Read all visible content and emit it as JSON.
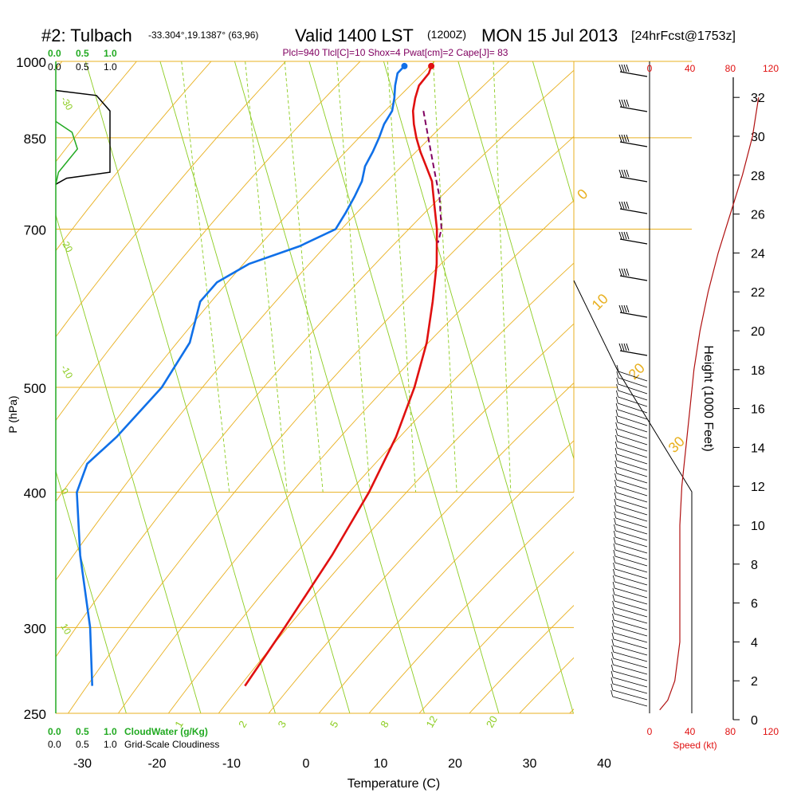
{
  "header": {
    "station": "#2: Tulbach",
    "coords": "-33.304°,19.1387° (63,96)",
    "valid": "Valid 1400 LST",
    "zulu": "(1200Z)",
    "date": "MON 15 Jul 2013",
    "forecast": "[24hrFcst@1753z]",
    "indices": "Plcl=940 Tlcl[C]=10 Shox=4 Pwat[cm]=2 Cape[J]= 83"
  },
  "colors": {
    "isobar": "#e8b020",
    "dry_adiabat": "#e8b020",
    "isotherm": "#8ccc20",
    "mixing_ratio": "#8ccc20",
    "temperature": "#e01010",
    "dewpoint": "#1070e8",
    "parcel": "#800060",
    "cloud": "#22aa22",
    "speed": "#e01010",
    "indices": "#800060"
  },
  "chart_data": {
    "type": "line",
    "xlabel": "Temperature (C)",
    "ylabel": "P (hPa)",
    "y2label": "Height (1000 Feet)",
    "x_ticks": [
      -30,
      -20,
      -10,
      0,
      10,
      20,
      30,
      40
    ],
    "p_ticks": [
      250,
      300,
      400,
      500,
      700,
      850,
      1000
    ],
    "xlim": [
      -34,
      45
    ],
    "plim": [
      1000,
      250
    ],
    "isobars": [
      250,
      300,
      400,
      500,
      700,
      850,
      1000
    ],
    "isotherm_labels": [
      {
        "t": 10,
        "p": 300,
        "text": "10"
      },
      {
        "t": 0,
        "p": 400,
        "text": "0"
      },
      {
        "t": -10,
        "p": 520,
        "text": "-10"
      },
      {
        "t": -20,
        "p": 680,
        "text": "-20"
      },
      {
        "t": -30,
        "p": 920,
        "text": "-30"
      }
    ],
    "dry_adiabat_labels": [
      {
        "x": 735,
        "y": 248,
        "text": "0"
      },
      {
        "x": 757,
        "y": 383,
        "text": "10"
      },
      {
        "x": 803,
        "y": 470,
        "text": "20"
      },
      {
        "x": 853,
        "y": 562,
        "text": "30"
      }
    ],
    "mixing_ratio_labels": [
      "1",
      "2",
      "3",
      "5",
      "8",
      "12",
      "20"
    ],
    "mixing_ratios": [
      1,
      2,
      3,
      5,
      8,
      12,
      20
    ],
    "temperature": {
      "name": "Temperature",
      "p": [
        990,
        975,
        950,
        925,
        900,
        875,
        850,
        825,
        800,
        775,
        750,
        700,
        650,
        600,
        550,
        500,
        450,
        400,
        350,
        300,
        265
      ],
      "t": [
        16.2,
        15.6,
        13.8,
        12.8,
        12.0,
        11.6,
        11.4,
        11.4,
        11.6,
        11.8,
        11.4,
        10.6,
        9.2,
        7.2,
        4.8,
        1.4,
        -3.0,
        -8.8,
        -16.2,
        -25.4,
        -33.0
      ]
    },
    "dewpoint": {
      "name": "Dewpoint",
      "p": [
        990,
        975,
        950,
        925,
        900,
        875,
        850,
        825,
        800,
        775,
        750,
        725,
        700,
        675,
        650,
        625,
        600,
        550,
        500,
        450,
        425,
        400,
        350,
        300,
        265
      ],
      "td": [
        12.6,
        11.4,
        10.6,
        10.0,
        9.2,
        7.6,
        6.4,
        5.0,
        3.4,
        2.4,
        0.8,
        -1.0,
        -3.0,
        -8.5,
        -16.0,
        -21.0,
        -24.0,
        -27.0,
        -32.5,
        -40.5,
        -45.5,
        -48.0,
        -50.0,
        -51.5,
        -53.5
      ]
    },
    "parcel": {
      "p": [
        900,
        850,
        800,
        750,
        700,
        680
      ],
      "t": [
        13.4,
        13.0,
        12.6,
        12.2,
        11.2,
        10.2
      ]
    },
    "surface_temp": {
      "p": 990,
      "t": 16.2
    },
    "surface_dew": {
      "p": 990,
      "td": 12.6
    },
    "height_ticks_kft": [
      0,
      2,
      4,
      6,
      8,
      10,
      12,
      14,
      16,
      18,
      20,
      22,
      24,
      26,
      28,
      30,
      32
    ],
    "speed_axis": {
      "label": "Speed (kt)",
      "ticks": [
        0,
        40,
        80,
        120
      ],
      "max": 120
    },
    "wind_speed": {
      "h_kft": [
        0.5,
        1,
        2,
        4,
        6,
        8,
        10,
        12,
        14,
        16,
        18,
        20,
        22,
        24,
        26,
        28,
        30,
        32
      ],
      "kt": [
        10,
        18,
        25,
        30,
        30,
        30,
        30,
        32,
        36,
        40,
        44,
        50,
        58,
        68,
        80,
        92,
        102,
        108
      ]
    },
    "cloud_water_axis": {
      "label": "CloudWater (g/Kg)",
      "ticks": [
        "0.0",
        "0.5",
        "1.0"
      ]
    },
    "cloudiness_axis": {
      "label": "Grid-Scale Cloudiness",
      "ticks": [
        "0.0",
        "0.5",
        "1.0"
      ]
    },
    "top_cloud_ticks_green": [
      "0.0",
      "0.5",
      "1.0"
    ],
    "top_cloud_ticks_black": [
      "0.0",
      "0.5",
      "1.0"
    ],
    "cloudiness": {
      "p": [
        780,
        790,
        900,
        930
      ],
      "frac": [
        0.2,
        1.0,
        1.0,
        0.75
      ]
    },
    "cloud_water": {
      "p": [
        790,
        830,
        860,
        880
      ],
      "gkg": [
        0.05,
        0.4,
        0.3,
        0.0
      ]
    }
  }
}
